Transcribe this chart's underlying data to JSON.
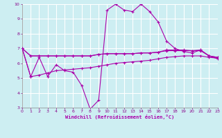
{
  "xlabel": "Windchill (Refroidissement éolien,°C)",
  "xlim": [
    0,
    23
  ],
  "ylim": [
    3,
    10
  ],
  "yticks": [
    3,
    4,
    5,
    6,
    7,
    8,
    9,
    10
  ],
  "xticks": [
    0,
    1,
    2,
    3,
    4,
    5,
    6,
    7,
    8,
    9,
    10,
    11,
    12,
    13,
    14,
    15,
    16,
    17,
    18,
    19,
    20,
    21,
    22,
    23
  ],
  "background_color": "#cdeef2",
  "grid_color": "#ffffff",
  "line_color": "#aa00aa",
  "line1_x": [
    0,
    1,
    2,
    3,
    4,
    5,
    6,
    7,
    8,
    9,
    10,
    11,
    12,
    13,
    14,
    15,
    16,
    17,
    18,
    19,
    20,
    21,
    22,
    23
  ],
  "line1_y": [
    7.0,
    5.1,
    6.4,
    5.1,
    5.9,
    5.5,
    5.4,
    4.5,
    2.9,
    3.5,
    9.6,
    10.0,
    9.6,
    9.5,
    10.0,
    9.5,
    8.8,
    7.5,
    7.0,
    6.8,
    6.7,
    6.9,
    6.5,
    6.3
  ],
  "line2_x": [
    0,
    1,
    2,
    3,
    4,
    5,
    6,
    7,
    8,
    9,
    10,
    11,
    12,
    13,
    14,
    15,
    16,
    17,
    18,
    19,
    20,
    21,
    22,
    23
  ],
  "line2_y": [
    7.0,
    6.5,
    6.5,
    6.5,
    6.5,
    6.5,
    6.5,
    6.5,
    6.5,
    6.6,
    6.65,
    6.65,
    6.65,
    6.65,
    6.7,
    6.7,
    6.75,
    6.9,
    6.9,
    6.9,
    6.85,
    6.9,
    6.5,
    6.4
  ],
  "line3_x": [
    0,
    1,
    2,
    3,
    4,
    5,
    6,
    7,
    8,
    9,
    10,
    11,
    12,
    13,
    14,
    15,
    16,
    17,
    18,
    19,
    20,
    21,
    22,
    23
  ],
  "line3_y": [
    7.0,
    6.5,
    6.5,
    6.5,
    6.5,
    6.5,
    6.5,
    6.5,
    6.5,
    6.6,
    6.65,
    6.65,
    6.65,
    6.65,
    6.7,
    6.7,
    6.75,
    6.85,
    6.85,
    6.85,
    6.85,
    6.85,
    6.5,
    6.4
  ],
  "line4_x": [
    0,
    1,
    2,
    3,
    4,
    5,
    6,
    7,
    8,
    9,
    10,
    11,
    12,
    13,
    14,
    15,
    16,
    17,
    18,
    19,
    20,
    21,
    22,
    23
  ],
  "line4_y": [
    7.0,
    5.1,
    5.2,
    5.35,
    5.5,
    5.55,
    5.6,
    5.65,
    5.7,
    5.8,
    5.9,
    6.0,
    6.05,
    6.1,
    6.15,
    6.2,
    6.3,
    6.4,
    6.45,
    6.5,
    6.5,
    6.5,
    6.4,
    6.35
  ],
  "figsize": [
    3.2,
    2.0
  ],
  "dpi": 100,
  "lw": 0.8,
  "ms": 3.0
}
